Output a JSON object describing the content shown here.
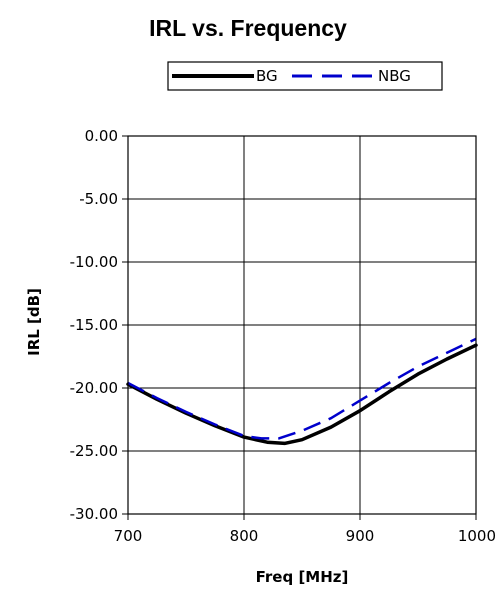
{
  "chart_data": {
    "type": "line",
    "title": "IRL vs. Frequency",
    "xlabel": "Freq [MHz]",
    "ylabel": "IRL [dB]",
    "xlim": [
      700,
      1000
    ],
    "ylim": [
      -30,
      0
    ],
    "x_ticks": [
      700,
      800,
      900,
      1000
    ],
    "y_ticks": [
      0,
      -5,
      -10,
      -15,
      -20,
      -25,
      -30
    ],
    "x_tick_labels": [
      "700",
      "800",
      "900",
      "1000"
    ],
    "y_tick_labels": [
      "0.00",
      "-5.00",
      "-10.00",
      "-15.00",
      "-20.00",
      "-25.00",
      "-30.00"
    ],
    "grid": true,
    "legend_position": "top",
    "series": [
      {
        "name": "BG",
        "color": "#000000",
        "style": "solid",
        "x": [
          700,
          725,
          750,
          775,
          800,
          820,
          835,
          850,
          875,
          900,
          925,
          950,
          975,
          1000
        ],
        "y": [
          -19.7,
          -20.9,
          -22.0,
          -23.0,
          -23.9,
          -24.3,
          -24.4,
          -24.1,
          -23.1,
          -21.8,
          -20.3,
          -18.9,
          -17.7,
          -16.6
        ]
      },
      {
        "name": "NBG",
        "color": "#0000cc",
        "style": "dashed",
        "x": [
          700,
          725,
          750,
          775,
          800,
          815,
          830,
          850,
          875,
          900,
          925,
          950,
          975,
          1000
        ],
        "y": [
          -19.6,
          -20.8,
          -21.9,
          -22.9,
          -23.8,
          -24.0,
          -24.0,
          -23.4,
          -22.4,
          -21.0,
          -19.6,
          -18.3,
          -17.2,
          -16.1
        ]
      }
    ]
  }
}
